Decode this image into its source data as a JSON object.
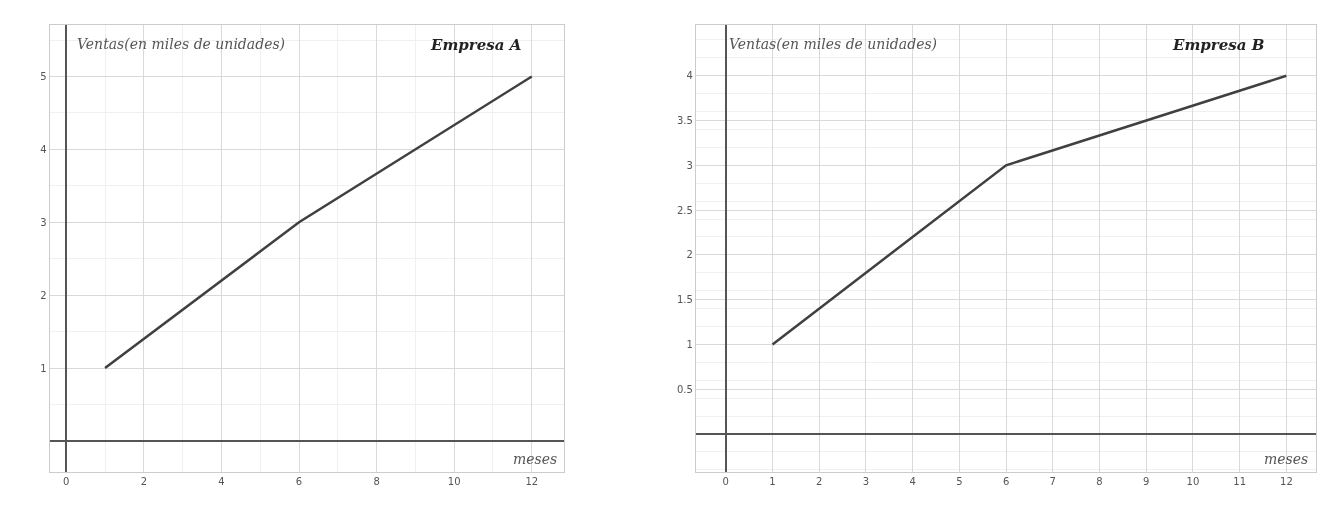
{
  "chart_data": [
    {
      "type": "line",
      "title": "Empresa A",
      "ylabel": "Ventas(en miles de unidades)",
      "xlabel": "meses",
      "x": [
        1,
        6,
        12
      ],
      "series": [
        {
          "color": "#404040",
          "values": [
            1,
            3,
            5
          ]
        }
      ],
      "xlim": [
        -0.43,
        12.83
      ],
      "ylim": [
        -0.42,
        5.71
      ],
      "xticks": [
        0,
        2,
        4,
        6,
        8,
        10,
        12
      ],
      "yticks": [
        1,
        2,
        3,
        4,
        5
      ],
      "grid": true,
      "marker": "none",
      "line_style": "solid"
    },
    {
      "type": "line",
      "title": "Empresa B",
      "ylabel": "Ventas(en miles de unidades)",
      "xlabel": "meses",
      "x": [
        1,
        6,
        12
      ],
      "series": [
        {
          "color": "#404040",
          "values": [
            1,
            3,
            4
          ]
        }
      ],
      "xlim": [
        -0.64,
        12.63
      ],
      "ylim": [
        -0.42,
        4.57
      ],
      "xticks": [
        0,
        1,
        2,
        3,
        4,
        5,
        6,
        7,
        8,
        9,
        10,
        11,
        12
      ],
      "yticks": [
        0.5,
        1,
        1.5,
        2,
        2.5,
        3,
        3.5,
        4
      ],
      "grid": true,
      "marker": "none",
      "line_style": "solid"
    }
  ]
}
